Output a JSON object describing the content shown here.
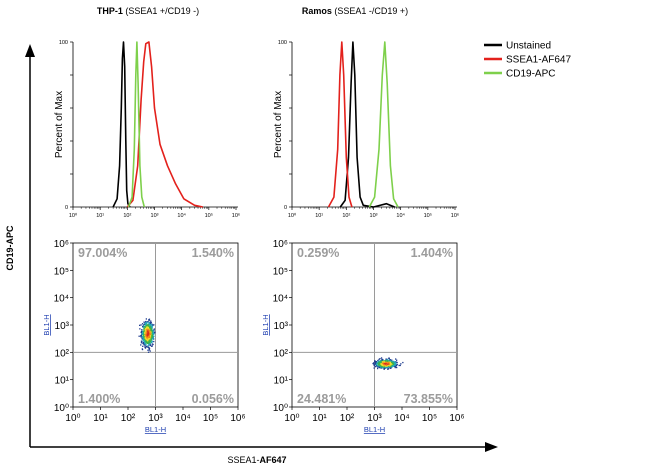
{
  "figure": {
    "panel_titles": [
      {
        "bold": "THP-1",
        "rest": " (SSEA1 +/CD19 -)"
      },
      {
        "bold": "Ramos",
        "rest": " (SSEA1 -/CD19 +)"
      }
    ],
    "outer_y_label": "CD19-APC",
    "outer_x_label": {
      "plain": "SSEA1-",
      "bold": "AF647"
    },
    "colors": {
      "unstained": "#000000",
      "ssea1": "#e3211c",
      "cd19": "#7ed04b",
      "quad_text": "#9c9c9c",
      "link_label": "#1f3fb0",
      "axis": "#000000"
    }
  },
  "chart_data": [
    {
      "type": "line",
      "panel": "THP-1 histogram",
      "ylabel": "Percent of Max",
      "x_scale": "log",
      "xlim": [
        1,
        1000000
      ],
      "ylim": [
        0,
        100
      ],
      "yticks": [
        "0",
        "",
        "",
        "",
        "",
        "100"
      ],
      "xticks": [
        "10⁰",
        "10¹",
        "10²",
        "10³",
        "10⁴",
        "10⁵",
        "10⁶"
      ],
      "series": [
        {
          "name": "Unstained",
          "color": "#000000",
          "points": [
            [
              30,
              0
            ],
            [
              42,
              5
            ],
            [
              52,
              25
            ],
            [
              60,
              60
            ],
            [
              66,
              90
            ],
            [
              72,
              100
            ],
            [
              80,
              85
            ],
            [
              88,
              40
            ],
            [
              95,
              10
            ],
            [
              105,
              2
            ],
            [
              125,
              0
            ]
          ]
        },
        {
          "name": "SSEA1-AF647",
          "color": "#e3211c",
          "points": [
            [
              100,
              0
            ],
            [
              160,
              4
            ],
            [
              240,
              25
            ],
            [
              320,
              65
            ],
            [
              400,
              88
            ],
            [
              480,
              99
            ],
            [
              620,
              100
            ],
            [
              780,
              85
            ],
            [
              1000,
              60
            ],
            [
              1600,
              38
            ],
            [
              3000,
              25
            ],
            [
              6000,
              14
            ],
            [
              12000,
              5
            ],
            [
              30000,
              1
            ],
            [
              60000,
              0
            ]
          ]
        },
        {
          "name": "CD19-APC",
          "color": "#7ed04b",
          "points": [
            [
              110,
              0
            ],
            [
              150,
              6
            ],
            [
              180,
              35
            ],
            [
              205,
              80
            ],
            [
              225,
              100
            ],
            [
              250,
              75
            ],
            [
              290,
              25
            ],
            [
              340,
              6
            ],
            [
              420,
              0
            ]
          ]
        }
      ]
    },
    {
      "type": "line",
      "panel": "Ramos histogram",
      "ylabel": "Percent of Max",
      "x_scale": "log",
      "xlim": [
        1,
        1000000
      ],
      "ylim": [
        0,
        100
      ],
      "yticks": [
        "0",
        "",
        "",
        "",
        "",
        "100"
      ],
      "xticks": [
        "10⁰",
        "10¹",
        "10²",
        "10³",
        "10⁴",
        "10⁵",
        "10⁶"
      ],
      "series": [
        {
          "name": "Unstained",
          "color": "#000000",
          "points": [
            [
              60,
              0
            ],
            [
              90,
              4
            ],
            [
              120,
              30
            ],
            [
              150,
              75
            ],
            [
              175,
              100
            ],
            [
              205,
              80
            ],
            [
              250,
              30
            ],
            [
              320,
              6
            ],
            [
              420,
              1
            ],
            [
              1000,
              0
            ],
            [
              3000,
              2
            ],
            [
              6000,
              0
            ]
          ]
        },
        {
          "name": "SSEA1-AF647",
          "color": "#e3211c",
          "points": [
            [
              22,
              0
            ],
            [
              35,
              6
            ],
            [
              48,
              35
            ],
            [
              58,
              80
            ],
            [
              68,
              100
            ],
            [
              80,
              80
            ],
            [
              100,
              30
            ],
            [
              125,
              6
            ],
            [
              160,
              0
            ]
          ]
        },
        {
          "name": "CD19-APC",
          "color": "#7ed04b",
          "points": [
            [
              700,
              0
            ],
            [
              1100,
              6
            ],
            [
              1600,
              35
            ],
            [
              2100,
              80
            ],
            [
              2600,
              100
            ],
            [
              3200,
              75
            ],
            [
              4200,
              25
            ],
            [
              5500,
              5
            ],
            [
              8000,
              0
            ]
          ]
        }
      ]
    },
    {
      "type": "scatter",
      "panel": "THP-1 dot plot",
      "xlabel": "BL1-H",
      "ylabel": "BL1-H",
      "x_scale": "log",
      "y_scale": "log",
      "xlim": [
        1,
        1000000
      ],
      "ylim": [
        1,
        1000000
      ],
      "ticks": [
        "10⁰",
        "10¹",
        "10²",
        "10³",
        "10⁴",
        "10⁵",
        "10⁶"
      ],
      "gates": {
        "x": 1000,
        "y": 100
      },
      "quadrants": {
        "upper_left": "97.004%",
        "upper_right": "1.540%",
        "lower_left": "1.400%",
        "lower_right": "0.056%"
      },
      "cluster_center": [
        500,
        500
      ]
    },
    {
      "type": "scatter",
      "panel": "Ramos dot plot",
      "xlabel": "BL1-H",
      "ylabel": "BL1-H",
      "x_scale": "log",
      "y_scale": "log",
      "xlim": [
        1,
        1000000
      ],
      "ylim": [
        1,
        1000000
      ],
      "ticks": [
        "10⁰",
        "10¹",
        "10²",
        "10³",
        "10⁴",
        "10⁵",
        "10⁶"
      ],
      "gates": {
        "x": 1000,
        "y": 100
      },
      "quadrants": {
        "upper_left": "0.259%",
        "upper_right": "1.404%",
        "lower_left": "24.481%",
        "lower_right": "73.855%"
      },
      "cluster_center": [
        2500,
        40
      ]
    }
  ],
  "legend": {
    "position": "top-right",
    "entries": [
      {
        "label": "Unstained",
        "color": "#000000"
      },
      {
        "label": "SSEA1-AF647",
        "color": "#e3211c"
      },
      {
        "label": "CD19-APC",
        "color": "#7ed04b"
      }
    ]
  }
}
